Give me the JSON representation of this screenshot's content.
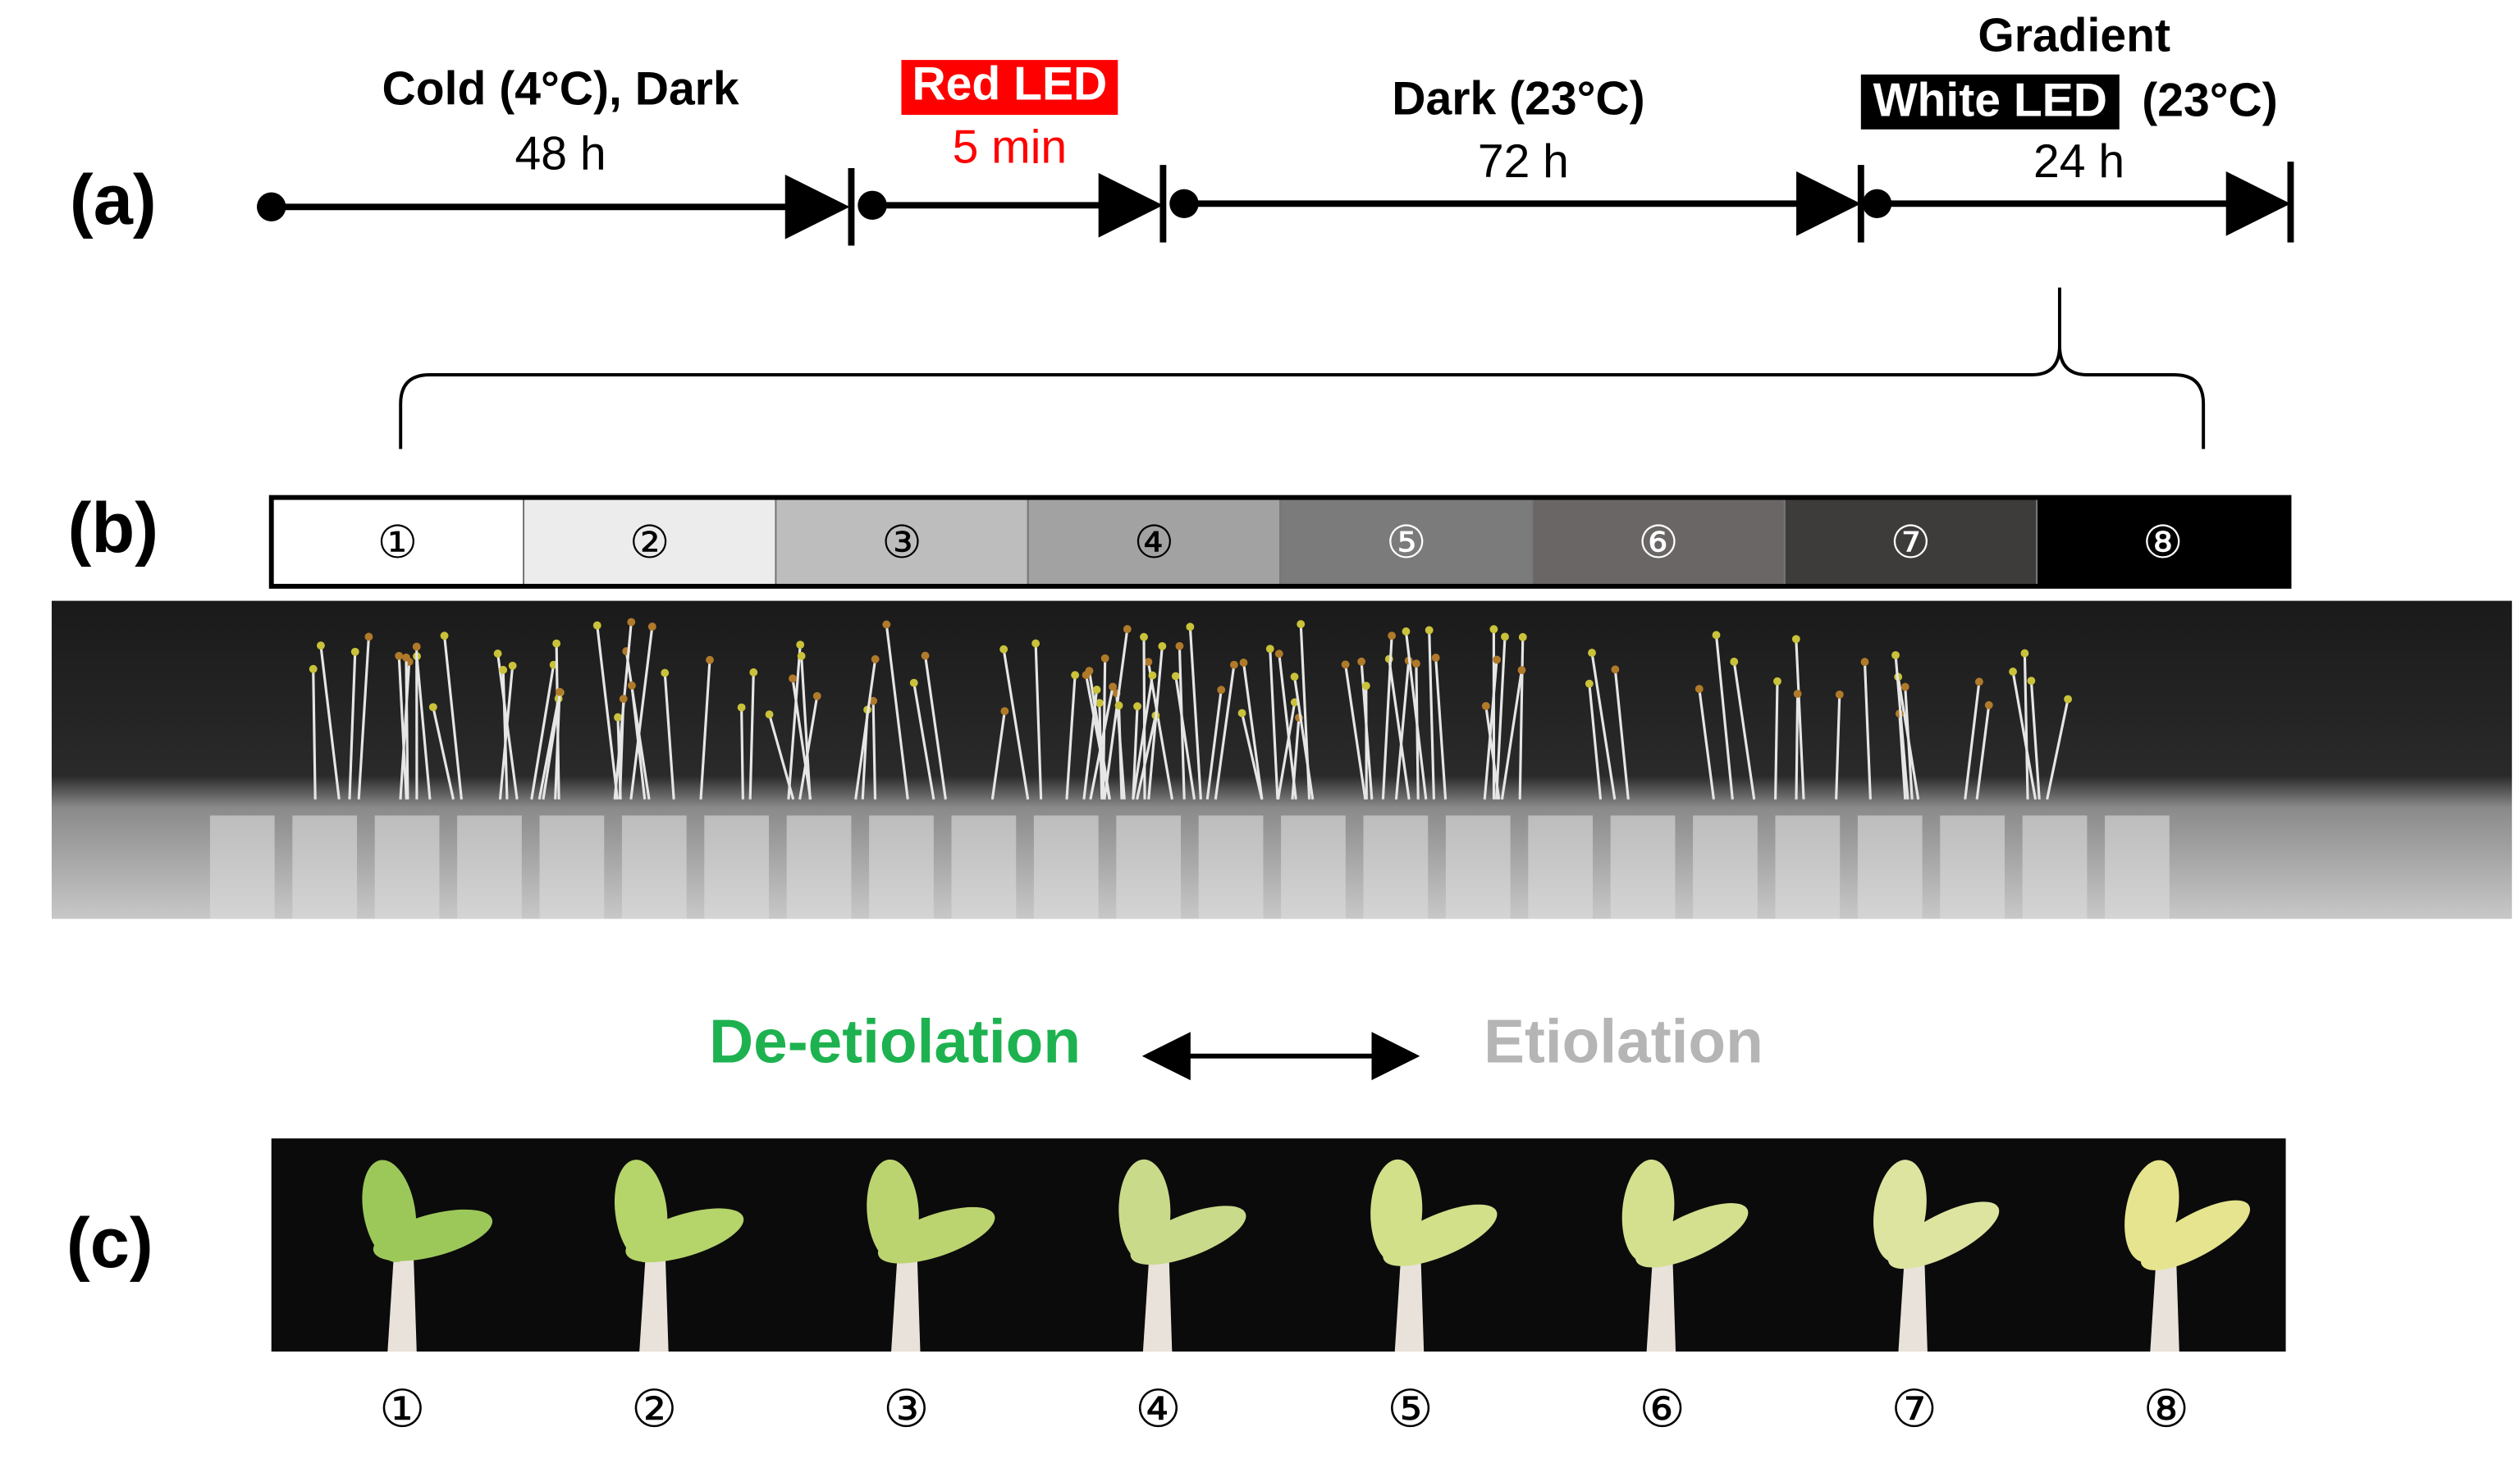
{
  "panels": {
    "a": "(a)",
    "b": "(b)",
    "c": "(c)"
  },
  "timeline": [
    {
      "label": "Cold (4°C), Dark",
      "duration": "48 h"
    },
    {
      "label": "Red LED",
      "duration": "5 min"
    },
    {
      "label": "Dark (23°C)",
      "duration": "72 h"
    },
    {
      "label": "Gradient",
      "highlight": "White LED",
      "suffix": "(23°C)",
      "duration": "24 h"
    }
  ],
  "gradient_levels": [
    "①",
    "②",
    "③",
    "④",
    "⑤",
    "⑥",
    "⑦",
    "⑧"
  ],
  "phenotype_axis": {
    "left": "De-etiolation",
    "right": "Etiolation"
  },
  "seedling_labels": [
    "①",
    "②",
    "③",
    "④",
    "⑤",
    "⑥",
    "⑦",
    "⑧"
  ]
}
